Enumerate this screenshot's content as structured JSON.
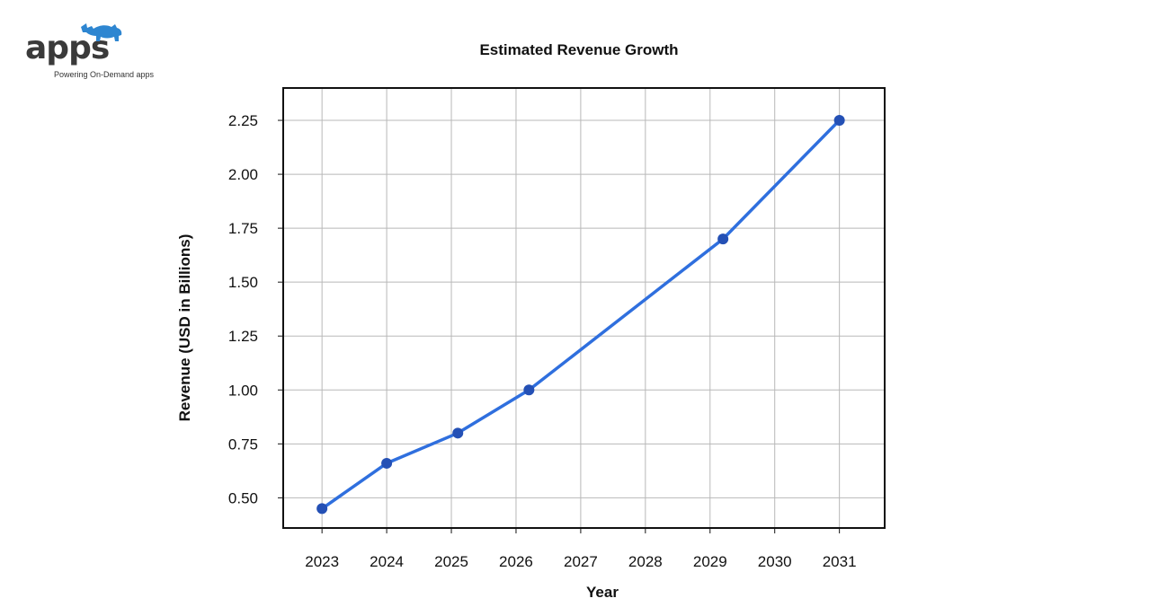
{
  "brand": {
    "name": "apps",
    "tagline": "Powering On-Demand apps",
    "accent_color": "#2e86d1",
    "icon": "rhino-icon"
  },
  "chart_data": {
    "type": "line",
    "title": "Estimated Revenue Growth",
    "xlabel": "Year",
    "ylabel": "Revenue (USD in Billions)",
    "x_ticks": [
      "2023",
      "2024",
      "2025",
      "2026",
      "2027",
      "2028",
      "2029",
      "2030",
      "2031"
    ],
    "y_ticks": [
      "0.50",
      "0.75",
      "1.00",
      "1.25",
      "1.50",
      "1.75",
      "2.00",
      "2.25"
    ],
    "xlim": [
      2022.4,
      2031.7
    ],
    "ylim": [
      0.36,
      2.4
    ],
    "grid": true,
    "series": [
      {
        "color": "#2f6fde",
        "marker_color": "#2450b5",
        "points": [
          {
            "x": 2023.0,
            "y": 0.45
          },
          {
            "x": 2024.0,
            "y": 0.66
          },
          {
            "x": 2025.1,
            "y": 0.8
          },
          {
            "x": 2026.2,
            "y": 1.0
          },
          {
            "x": 2029.2,
            "y": 1.7
          },
          {
            "x": 2031.0,
            "y": 2.25
          }
        ]
      }
    ]
  }
}
